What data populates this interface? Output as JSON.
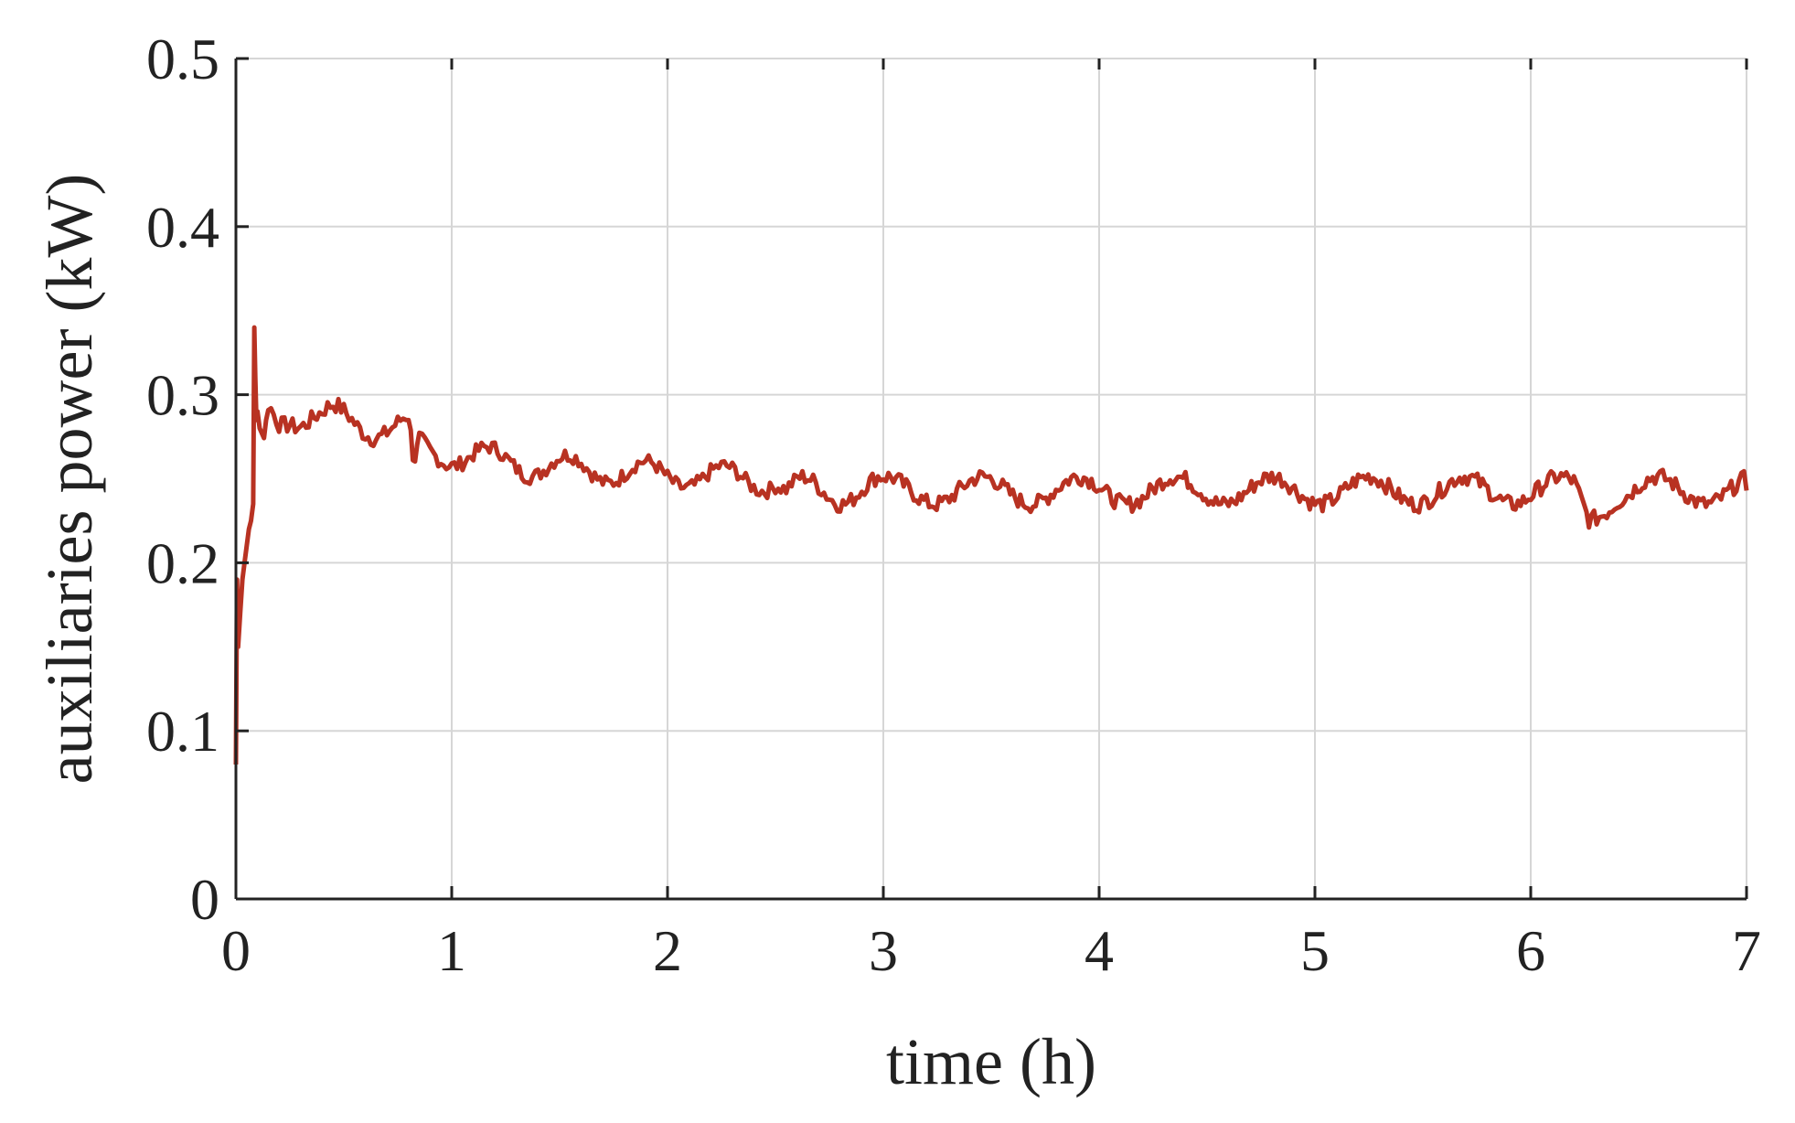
{
  "chart_data": {
    "type": "line",
    "title": "",
    "xlabel": "time (h)",
    "ylabel": "auxiliaries power (kW)",
    "xlim": [
      0,
      7
    ],
    "ylim": [
      0,
      0.5
    ],
    "xticks": [
      0,
      1,
      2,
      3,
      4,
      5,
      6,
      7
    ],
    "xtick_labels": [
      "0",
      "1",
      "2",
      "3",
      "4",
      "5",
      "6",
      "7"
    ],
    "yticks": [
      0,
      0.1,
      0.2,
      0.3,
      0.4,
      0.5
    ],
    "ytick_labels": [
      "0",
      "0.1",
      "0.2",
      "0.3",
      "0.4",
      "0.5"
    ],
    "grid": true,
    "legend": "none",
    "colors": {
      "series": "#b83222",
      "axis": "#222222",
      "grid": "#d6d6d6"
    },
    "series": [
      {
        "x": [
          0.0,
          0.005,
          0.01,
          0.02,
          0.03,
          0.04,
          0.05,
          0.06,
          0.07,
          0.08,
          0.085,
          0.09,
          0.095,
          0.1,
          0.11,
          0.13,
          0.15,
          0.2,
          0.25,
          0.3,
          0.35,
          0.4,
          0.45,
          0.5,
          0.55,
          0.6,
          0.65,
          0.7,
          0.75,
          0.8,
          0.82,
          0.85,
          0.9,
          1.0,
          1.1,
          1.2,
          1.3,
          1.4,
          1.5,
          1.6,
          1.7,
          1.8,
          1.9,
          2.0,
          2.1,
          2.2,
          2.3,
          2.4,
          2.5,
          2.55,
          2.6,
          2.7,
          2.8,
          2.9,
          3.0,
          3.2,
          3.4,
          3.6,
          3.8,
          4.0,
          4.2,
          4.4,
          4.6,
          4.8,
          5.0,
          5.2,
          5.4,
          5.6,
          5.8,
          6.0,
          6.2,
          6.27,
          6.4,
          6.6,
          6.8,
          7.0
        ],
        "y": [
          0.08,
          0.19,
          0.15,
          0.17,
          0.19,
          0.2,
          0.21,
          0.22,
          0.225,
          0.235,
          0.34,
          0.31,
          0.285,
          0.29,
          0.28,
          0.285,
          0.29,
          0.285,
          0.29,
          0.288,
          0.287,
          0.285,
          0.286,
          0.285,
          0.284,
          0.283,
          0.282,
          0.281,
          0.28,
          0.28,
          0.27,
          0.268,
          0.266,
          0.265,
          0.263,
          0.261,
          0.26,
          0.258,
          0.257,
          0.256,
          0.255,
          0.254,
          0.253,
          0.252,
          0.252,
          0.251,
          0.25,
          0.25,
          0.25,
          0.242,
          0.243,
          0.243,
          0.243,
          0.243,
          0.243,
          0.243,
          0.243,
          0.243,
          0.243,
          0.243,
          0.243,
          0.243,
          0.243,
          0.243,
          0.243,
          0.243,
          0.243,
          0.243,
          0.243,
          0.243,
          0.243,
          0.23,
          0.243,
          0.243,
          0.243,
          0.243
        ]
      }
    ]
  }
}
